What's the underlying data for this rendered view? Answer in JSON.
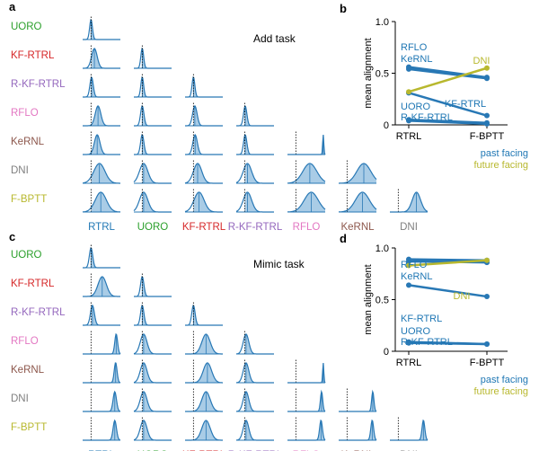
{
  "colors": {
    "blue": "#2878b5",
    "olive": "#b8b82e",
    "fill": "#a9cce6",
    "green": "#2ca02c",
    "red": "#d62728",
    "purple": "#9467bd",
    "pink": "#e377c2",
    "brown": "#8c564b",
    "gray": "#7f7f7f",
    "label_blue": "#1f77b4"
  },
  "labels": {
    "row": [
      "UORO",
      "KF-RTRL",
      "R-KF-RTRL",
      "RFLO",
      "KeRNL",
      "DNI",
      "F-BPTT"
    ],
    "row_colors": [
      "#2ca02c",
      "#d62728",
      "#9467bd",
      "#e377c2",
      "#8c564b",
      "#7f7f7f",
      "#b8b82e"
    ],
    "col": [
      "RTRL",
      "UORO",
      "KF-RTRL",
      "R-KF-RTRL",
      "RFLO",
      "KeRNL",
      "DNI"
    ],
    "col_colors": [
      "#1f77b4",
      "#2ca02c",
      "#d62728",
      "#9467bd",
      "#e377c2",
      "#8c564b",
      "#7f7f7f"
    ]
  },
  "panels": {
    "a": {
      "letter": "a",
      "title": "Add task"
    },
    "b": {
      "letter": "b"
    },
    "c": {
      "letter": "c",
      "title": "Mimic task"
    },
    "d": {
      "letter": "d"
    }
  },
  "chart_data": [
    {
      "type": "line",
      "panel": "b",
      "categories": [
        "RTRL",
        "F-BPTT"
      ],
      "ylabel": "mean alignment",
      "ylim": [
        0,
        1
      ],
      "yticks": [
        "0",
        "0.5",
        "1.0"
      ],
      "series_labels": [
        {
          "text": "RFLO",
          "color": "#1f77b4",
          "anchor": "left"
        },
        {
          "text": "KeRNL",
          "color": "#1f77b4",
          "anchor": "left"
        },
        {
          "text": "UORO",
          "color": "#1f77b4",
          "anchor": "left"
        },
        {
          "text": "R-KF-RTRL",
          "color": "#1f77b4",
          "anchor": "left"
        },
        {
          "text": "DNI",
          "color": "#b8b82e",
          "anchor": "right"
        },
        {
          "text": "KF-RTRL",
          "color": "#1f77b4",
          "anchor": "right"
        }
      ],
      "series": [
        {
          "name": "RFLO",
          "values": [
            0.56,
            0.46
          ],
          "color": "#2878b5"
        },
        {
          "name": "KeRNL",
          "values": [
            0.54,
            0.45
          ],
          "color": "#2878b5"
        },
        {
          "name": "KF-RTRL",
          "values": [
            0.31,
            0.09
          ],
          "color": "#2878b5"
        },
        {
          "name": "UORO",
          "values": [
            0.05,
            0.02
          ],
          "color": "#2878b5"
        },
        {
          "name": "R-KF-RTRL",
          "values": [
            0.04,
            0.01
          ],
          "color": "#2878b5"
        },
        {
          "name": "DNI",
          "values": [
            0.32,
            0.55
          ],
          "color": "#b8b82e"
        }
      ],
      "legend": [
        {
          "text": "past facing",
          "color": "#1f77b4"
        },
        {
          "text": "future facing",
          "color": "#b8b82e"
        }
      ]
    },
    {
      "type": "line",
      "panel": "d",
      "categories": [
        "RTRL",
        "F-BPTT"
      ],
      "ylabel": "mean alignment",
      "ylim": [
        0,
        1
      ],
      "yticks": [
        "0",
        "0.5",
        "1.0"
      ],
      "series_labels": [
        {
          "text": "RFLO",
          "color": "#1f77b4",
          "anchor": "left"
        },
        {
          "text": "KeRNL",
          "color": "#1f77b4",
          "anchor": "left"
        },
        {
          "text": "KF-RTRL",
          "color": "#1f77b4",
          "anchor": "left"
        },
        {
          "text": "UORO",
          "color": "#1f77b4",
          "anchor": "left"
        },
        {
          "text": "R-KF-RTRL",
          "color": "#1f77b4",
          "anchor": "left"
        },
        {
          "text": "DNI",
          "color": "#b8b82e",
          "anchor": "right"
        }
      ],
      "series": [
        {
          "name": "RFLO",
          "values": [
            0.89,
            0.88
          ],
          "color": "#2878b5"
        },
        {
          "name": "KeRNL",
          "values": [
            0.87,
            0.86
          ],
          "color": "#2878b5"
        },
        {
          "name": "KF-RTRL",
          "values": [
            0.64,
            0.53
          ],
          "color": "#2878b5"
        },
        {
          "name": "UORO",
          "values": [
            0.09,
            0.07
          ],
          "color": "#2878b5"
        },
        {
          "name": "R-KF-RTRL",
          "values": [
            0.08,
            0.07
          ],
          "color": "#2878b5"
        },
        {
          "name": "DNI",
          "values": [
            0.83,
            0.88
          ],
          "color": "#b8b82e"
        }
      ],
      "legend": [
        {
          "text": "past facing",
          "color": "#1f77b4"
        },
        {
          "text": "future facing",
          "color": "#b8b82e"
        }
      ]
    },
    {
      "type": "area",
      "panel": "a",
      "description_rows": "rows = UORO, KF-RTRL, R-KF-RTRL, RFLO, KeRNL, DNI, F-BPTT; cols = RTRL, UORO, KF-RTRL, R-KF-RTRL, RFLO, KeRNL, DNI; lower-triangular grid of alignment distributions",
      "cells": [
        [
          {
            "mu": 0.0,
            "sd": 0.05
          }
        ],
        [
          {
            "mu": 0.12,
            "sd": 0.1
          },
          {
            "mu": 0.0,
            "sd": 0.05
          }
        ],
        [
          {
            "mu": 0.02,
            "sd": 0.06
          },
          {
            "mu": 0.0,
            "sd": 0.05
          },
          {
            "mu": 0.0,
            "sd": 0.05
          }
        ],
        [
          {
            "mu": 0.25,
            "sd": 0.1
          },
          {
            "mu": 0.0,
            "sd": 0.06
          },
          {
            "mu": 0.05,
            "sd": 0.08
          },
          {
            "mu": 0.02,
            "sd": 0.06
          }
        ],
        [
          {
            "mu": 0.22,
            "sd": 0.1
          },
          {
            "mu": 0.0,
            "sd": 0.06
          },
          {
            "mu": 0.06,
            "sd": 0.08
          },
          {
            "mu": 0.02,
            "sd": 0.06
          },
          {
            "mu": 0.98,
            "sd": 0.02
          }
        ],
        [
          {
            "mu": 0.3,
            "sd": 0.2
          },
          {
            "mu": 0.05,
            "sd": 0.15
          },
          {
            "mu": 0.15,
            "sd": 0.15
          },
          {
            "mu": 0.1,
            "sd": 0.15
          },
          {
            "mu": 0.5,
            "sd": 0.25
          },
          {
            "mu": 0.6,
            "sd": 0.25
          }
        ],
        [
          {
            "mu": 0.35,
            "sd": 0.2
          },
          {
            "mu": 0.05,
            "sd": 0.15
          },
          {
            "mu": 0.2,
            "sd": 0.18
          },
          {
            "mu": 0.1,
            "sd": 0.15
          },
          {
            "mu": 0.55,
            "sd": 0.25
          },
          {
            "mu": 0.55,
            "sd": 0.25
          },
          {
            "mu": 0.65,
            "sd": 0.15
          }
        ]
      ]
    },
    {
      "type": "area",
      "panel": "c",
      "description_rows": "rows = UORO, KF-RTRL, R-KF-RTRL, RFLO, KeRNL, DNI, F-BPTT; cols = RTRL, UORO, KF-RTRL, R-KF-RTRL, RFLO, KeRNL, DNI; lower-triangular grid of alignment distributions",
      "cells": [
        [
          {
            "mu": 0.0,
            "sd": 0.06
          }
        ],
        [
          {
            "mu": 0.4,
            "sd": 0.15
          },
          {
            "mu": 0.0,
            "sd": 0.06
          }
        ],
        [
          {
            "mu": 0.05,
            "sd": 0.07
          },
          {
            "mu": 0.0,
            "sd": 0.06
          },
          {
            "mu": 0.0,
            "sd": 0.06
          }
        ],
        [
          {
            "mu": 0.9,
            "sd": 0.05
          },
          {
            "mu": 0.05,
            "sd": 0.12
          },
          {
            "mu": 0.45,
            "sd": 0.15
          },
          {
            "mu": 0.05,
            "sd": 0.1
          }
        ],
        [
          {
            "mu": 0.88,
            "sd": 0.05
          },
          {
            "mu": 0.05,
            "sd": 0.12
          },
          {
            "mu": 0.5,
            "sd": 0.15
          },
          {
            "mu": 0.05,
            "sd": 0.1
          },
          {
            "mu": 0.98,
            "sd": 0.02
          }
        ],
        [
          {
            "mu": 0.85,
            "sd": 0.06
          },
          {
            "mu": 0.05,
            "sd": 0.12
          },
          {
            "mu": 0.45,
            "sd": 0.15
          },
          {
            "mu": 0.05,
            "sd": 0.1
          },
          {
            "mu": 0.92,
            "sd": 0.04
          },
          {
            "mu": 0.92,
            "sd": 0.04
          }
        ],
        [
          {
            "mu": 0.85,
            "sd": 0.06
          },
          {
            "mu": 0.05,
            "sd": 0.12
          },
          {
            "mu": 0.45,
            "sd": 0.15
          },
          {
            "mu": 0.05,
            "sd": 0.1
          },
          {
            "mu": 0.9,
            "sd": 0.05
          },
          {
            "mu": 0.9,
            "sd": 0.05
          },
          {
            "mu": 0.9,
            "sd": 0.05
          }
        ]
      ]
    }
  ]
}
